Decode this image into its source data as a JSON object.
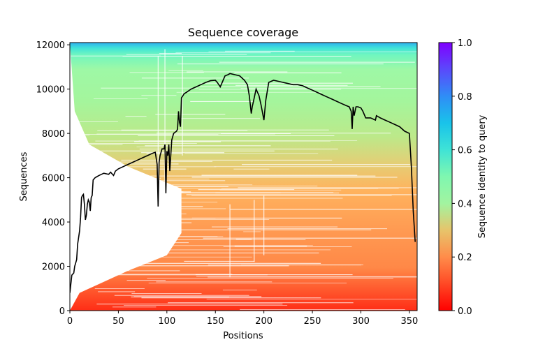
{
  "chart_data": {
    "type": "heatmap",
    "title": "Sequence coverage",
    "xlabel": "Positions",
    "ylabel": "Sequences",
    "xlim": [
      0,
      358
    ],
    "ylim": [
      0,
      12100
    ],
    "xticks": [
      0,
      50,
      100,
      150,
      200,
      250,
      300,
      350
    ],
    "yticks": [
      0,
      2000,
      4000,
      6000,
      8000,
      10000,
      12000
    ],
    "colorbar": {
      "label": "Sequence identity to query",
      "range": [
        0.0,
        1.0
      ],
      "ticks": [
        0.0,
        0.2,
        0.4,
        0.6,
        0.8,
        1.0
      ],
      "tick_labels": [
        "0.0",
        "0.2",
        "0.4",
        "0.6",
        "0.8",
        "1.0"
      ],
      "colormap": "rainbow_r"
    },
    "identity_by_sequence": [
      {
        "seq": 0,
        "identity": 0.05
      },
      {
        "seq": 500,
        "identity": 0.1
      },
      {
        "seq": 1500,
        "identity": 0.15
      },
      {
        "seq": 3000,
        "identity": 0.2
      },
      {
        "seq": 5000,
        "identity": 0.23
      },
      {
        "seq": 6000,
        "identity": 0.27
      },
      {
        "seq": 7000,
        "identity": 0.32
      },
      {
        "seq": 8000,
        "identity": 0.38
      },
      {
        "seq": 9000,
        "identity": 0.42
      },
      {
        "seq": 10000,
        "identity": 0.45
      },
      {
        "seq": 11000,
        "identity": 0.47
      },
      {
        "seq": 11600,
        "identity": 0.55
      },
      {
        "seq": 11900,
        "identity": 0.63
      },
      {
        "seq": 12100,
        "identity": 0.72
      }
    ],
    "coverage_region": {
      "left_edge_points": [
        {
          "seq": 0,
          "pos": 0
        },
        {
          "seq": 800,
          "pos": 10
        },
        {
          "seq": 1800,
          "pos": 60
        },
        {
          "seq": 2500,
          "pos": 100
        },
        {
          "seq": 3500,
          "pos": 115
        },
        {
          "seq": 5500,
          "pos": 115
        },
        {
          "seq": 6500,
          "pos": 60
        },
        {
          "seq": 7500,
          "pos": 20
        },
        {
          "seq": 9000,
          "pos": 5
        },
        {
          "seq": 12100,
          "pos": 0
        }
      ]
    },
    "series": [
      {
        "name": "coverage",
        "color": "#000000",
        "x": [
          0,
          2,
          4,
          5,
          7,
          8,
          10,
          11,
          12,
          13,
          14,
          15,
          16,
          17,
          18,
          19,
          20,
          21,
          22,
          23,
          24,
          26,
          28,
          30,
          35,
          40,
          42,
          45,
          47,
          50,
          55,
          60,
          65,
          70,
          75,
          80,
          85,
          88,
          90,
          91,
          92,
          93,
          95,
          97,
          98,
          99,
          100,
          101,
          102,
          103,
          105,
          107,
          110,
          111,
          112,
          113,
          114,
          115,
          118,
          120,
          125,
          130,
          135,
          140,
          145,
          150,
          152,
          155,
          156,
          158,
          160,
          163,
          165,
          170,
          175,
          180,
          183,
          185,
          187,
          188,
          190,
          192,
          195,
          197,
          200,
          202,
          205,
          210,
          215,
          220,
          225,
          230,
          235,
          240,
          245,
          250,
          255,
          260,
          265,
          270,
          275,
          280,
          285,
          288,
          290,
          291,
          292,
          293,
          295,
          297,
          300,
          302,
          305,
          310,
          315,
          316,
          318,
          320,
          325,
          330,
          335,
          340,
          345,
          350,
          352,
          354,
          356
        ],
        "y": [
          800,
          1600,
          1700,
          2000,
          2300,
          3000,
          3600,
          4200,
          5100,
          5200,
          5250,
          4800,
          4100,
          4300,
          4800,
          5000,
          4900,
          4500,
          5100,
          5200,
          5900,
          6000,
          6050,
          6100,
          6200,
          6150,
          6250,
          6100,
          6300,
          6400,
          6500,
          6600,
          6700,
          6800,
          6900,
          7000,
          7100,
          7150,
          6600,
          4700,
          6700,
          7000,
          7300,
          7300,
          7500,
          5300,
          7200,
          7000,
          7500,
          6300,
          7700,
          8000,
          8100,
          8200,
          9000,
          8500,
          8300,
          9600,
          9800,
          9850,
          10000,
          10100,
          10200,
          10300,
          10380,
          10400,
          10300,
          10100,
          10200,
          10400,
          10600,
          10650,
          10700,
          10650,
          10600,
          10400,
          10200,
          9700,
          8900,
          9200,
          9600,
          10000,
          9700,
          9300,
          8600,
          9500,
          10300,
          10400,
          10350,
          10300,
          10250,
          10200,
          10200,
          10150,
          10050,
          9950,
          9850,
          9750,
          9650,
          9550,
          9450,
          9350,
          9250,
          9200,
          9000,
          8200,
          9200,
          8800,
          9200,
          9200,
          9150,
          9000,
          8700,
          8700,
          8600,
          8800,
          8750,
          8700,
          8600,
          8500,
          8400,
          8300,
          8100,
          8000,
          6500,
          4500,
          3100
        ]
      }
    ]
  }
}
